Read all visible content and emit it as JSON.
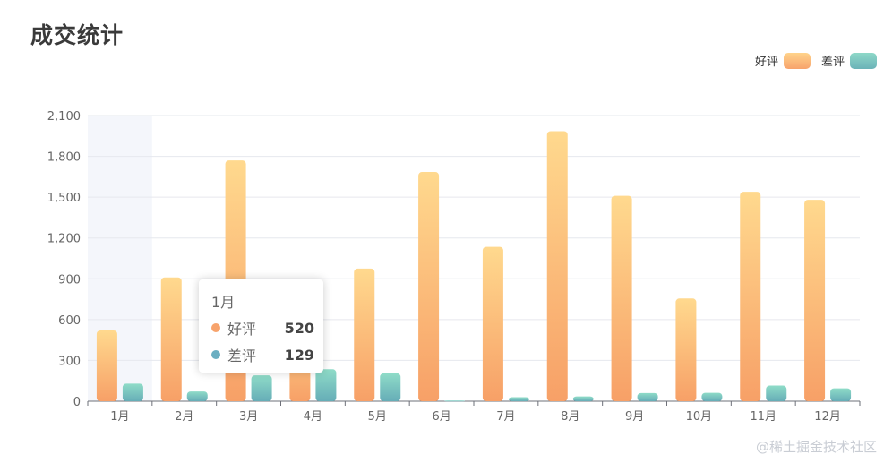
{
  "title": "成交统计",
  "legend": [
    {
      "name": "好评",
      "color_top": "#ffd38b",
      "color_bottom": "#f7a36c"
    },
    {
      "name": "差评",
      "color_top": "#8ed8c8",
      "color_bottom": "#6bb3b8"
    }
  ],
  "tooltip": {
    "title": "1月",
    "rows": [
      {
        "name": "好评",
        "value": "520",
        "color": "#f7a36c"
      },
      {
        "name": "差评",
        "value": "129",
        "color": "#6aaec1"
      }
    ]
  },
  "watermark": "@稀土掘金技术社区",
  "chart_data": {
    "type": "bar",
    "categories": [
      "1月",
      "2月",
      "3月",
      "4月",
      "5月",
      "6月",
      "7月",
      "8月",
      "9月",
      "10月",
      "11月",
      "12月"
    ],
    "series": [
      {
        "name": "好评",
        "values": [
          520,
          910,
          1770,
          590,
          975,
          1685,
          1135,
          1985,
          1510,
          755,
          1540,
          1480
        ]
      },
      {
        "name": "差评",
        "values": [
          129,
          72,
          190,
          235,
          205,
          5,
          30,
          35,
          60,
          62,
          115,
          95
        ]
      }
    ],
    "ylim": [
      0,
      2100
    ],
    "yticks": [
      "0",
      "300",
      "600",
      "900",
      "1,200",
      "1,500",
      "1,800",
      "2,100"
    ],
    "ytick_values": [
      0,
      300,
      600,
      900,
      1200,
      1500,
      1800,
      2100
    ],
    "highlight_category": "1月",
    "grid": true
  }
}
